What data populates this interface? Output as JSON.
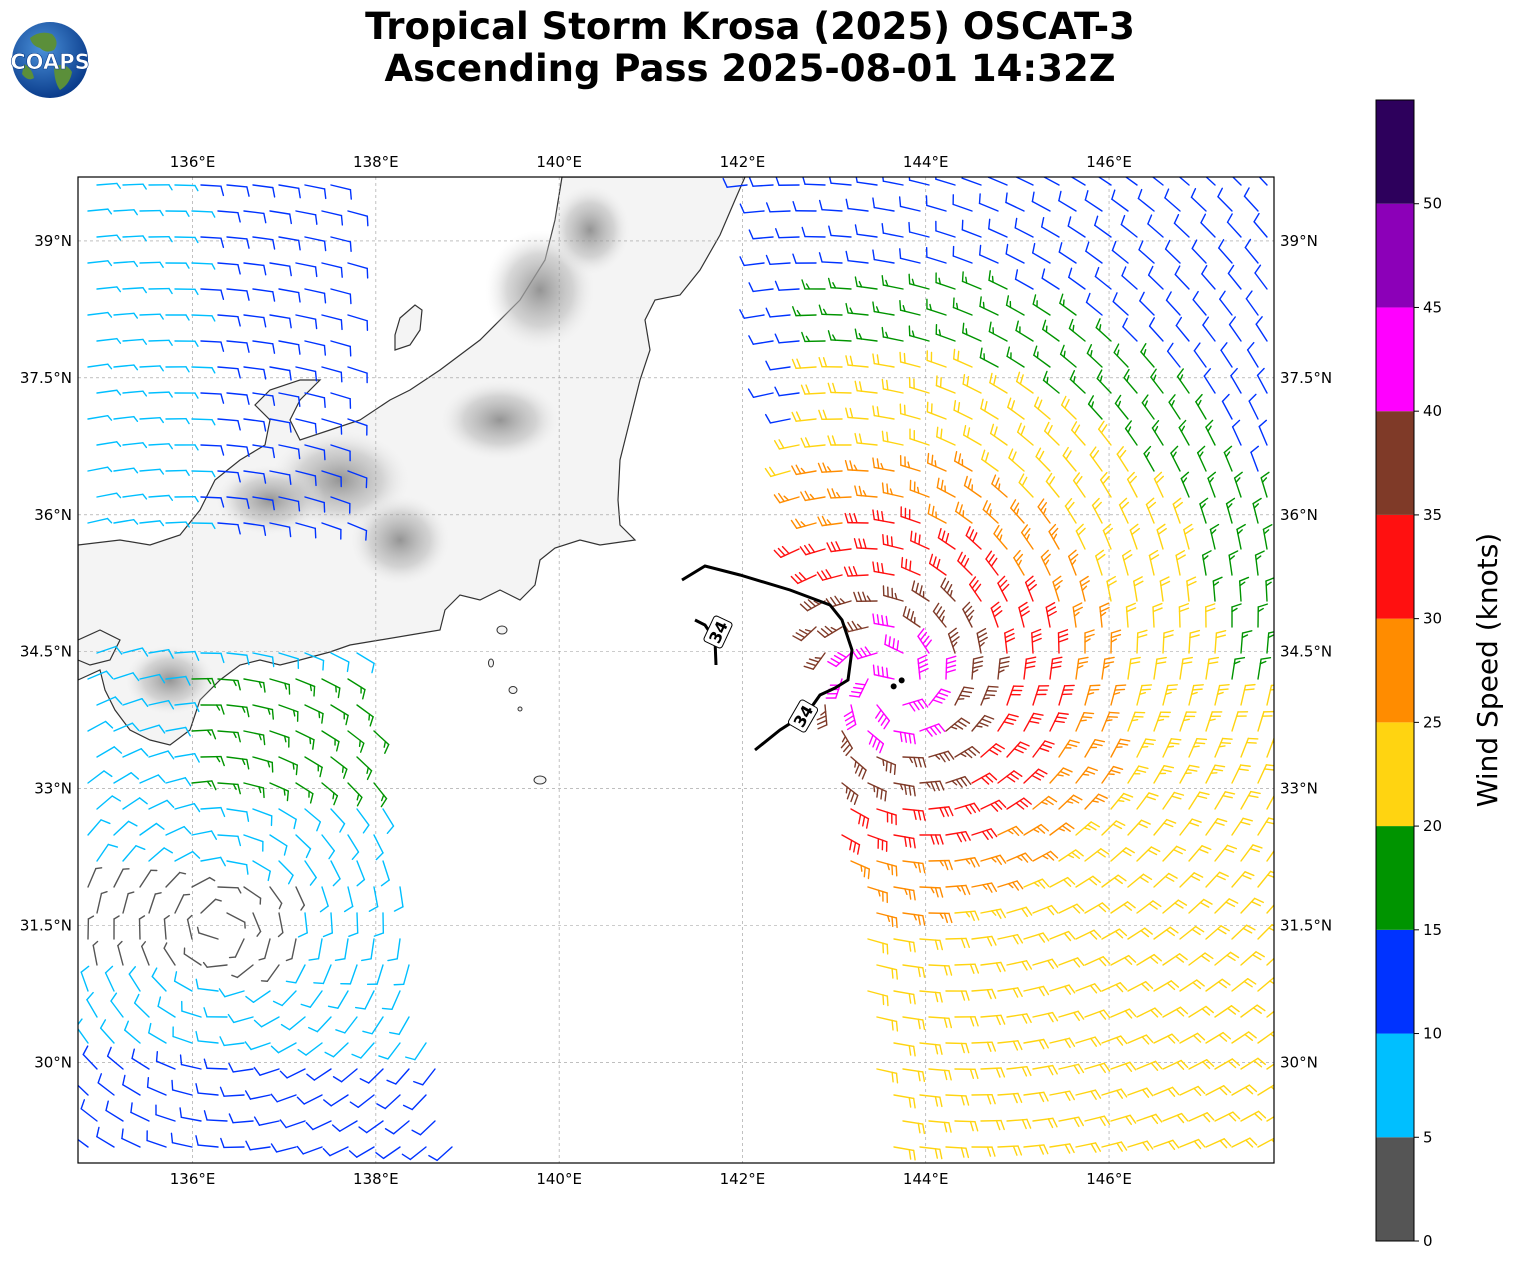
{
  "title": {
    "line1": "Tropical Storm Krosa (2025) OSCAT-3",
    "line2": "Ascending Pass 2025-08-01 14:32Z"
  },
  "logo": {
    "text": "COAPS",
    "icon": "globe-icon"
  },
  "map": {
    "lon_range": [
      134.75,
      147.8
    ],
    "lat_range": [
      28.9,
      39.7
    ],
    "lon_ticks": [
      {
        "value": 136,
        "label": "136°E"
      },
      {
        "value": 138,
        "label": "138°E"
      },
      {
        "value": 140,
        "label": "140°E"
      },
      {
        "value": 142,
        "label": "142°E"
      },
      {
        "value": 144,
        "label": "144°E"
      },
      {
        "value": 146,
        "label": "146°E"
      }
    ],
    "lat_ticks": [
      {
        "value": 39,
        "label": "39°N"
      },
      {
        "value": 37.5,
        "label": "37.5°N"
      },
      {
        "value": 36,
        "label": "36°N"
      },
      {
        "value": 34.5,
        "label": "34.5°N"
      },
      {
        "value": 33,
        "label": "33°N"
      },
      {
        "value": 31.5,
        "label": "31.5°N"
      },
      {
        "value": 30,
        "label": "30°N"
      }
    ],
    "contour_label": "34",
    "center": {
      "lon": 143.65,
      "lat": 34.12
    }
  },
  "colorbar": {
    "label": "Wind Speed (knots)",
    "bins": [
      {
        "min": 0,
        "max": 5,
        "color": "#555555"
      },
      {
        "min": 5,
        "max": 10,
        "color": "#00bfff"
      },
      {
        "min": 10,
        "max": 15,
        "color": "#0033ff"
      },
      {
        "min": 15,
        "max": 20,
        "color": "#009400"
      },
      {
        "min": 20,
        "max": 25,
        "color": "#ffd411"
      },
      {
        "min": 25,
        "max": 30,
        "color": "#ff8c00"
      },
      {
        "min": 30,
        "max": 35,
        "color": "#ff1010"
      },
      {
        "min": 35,
        "max": 40,
        "color": "#7f3a28"
      },
      {
        "min": 40,
        "max": 45,
        "color": "#ff00ff"
      },
      {
        "min": 45,
        "max": 50,
        "color": "#8c00b8"
      },
      {
        "min": 50,
        "max": 55,
        "color": "#2d005c"
      }
    ],
    "tick_labels": [
      "0",
      "5",
      "10",
      "15",
      "20",
      "25",
      "30",
      "35",
      "40",
      "45",
      "50"
    ]
  }
}
